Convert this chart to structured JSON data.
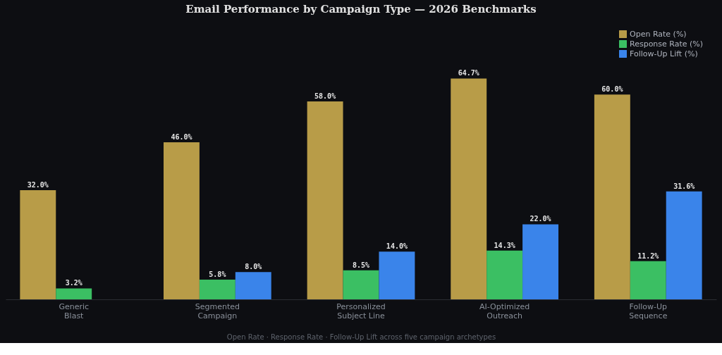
{
  "chart_data": {
    "type": "bar",
    "title": "Email Performance by Campaign Type  —  2026 Benchmarks",
    "categories": [
      "Generic\nBlast",
      "Segmented\nCampaign",
      "Personalized\nSubject Line",
      "AI-Optimized\nOutreach",
      "Follow-Up\nSequence"
    ],
    "series": [
      {
        "name": "Open Rate (%)",
        "color": "#b89c48",
        "values": [
          32.0,
          46.0,
          58.0,
          64.7,
          60.0
        ],
        "value_labels": [
          "32.0%",
          "46.0%",
          "58.0%",
          "64.7%",
          "60.0%"
        ]
      },
      {
        "name": "Response Rate (%)",
        "color": "#3bbf63",
        "values": [
          3.2,
          5.8,
          8.5,
          14.3,
          11.2
        ],
        "value_labels": [
          "3.2%",
          "5.8%",
          "8.5%",
          "14.3%",
          "11.2%"
        ]
      },
      {
        "name": "Follow-Up Lift (%)",
        "color": "#3a84ea",
        "values": [
          null,
          8.0,
          14.0,
          22.0,
          31.6
        ],
        "value_labels": [
          null,
          "8.0%",
          "14.0%",
          "22.0%",
          "31.6%"
        ]
      }
    ],
    "annotations": [
      "Open Rate  ·  Response Rate  ·  Follow-Up Lift across five campaign archetypes"
    ],
    "legend": "top right",
    "grid": false
  }
}
